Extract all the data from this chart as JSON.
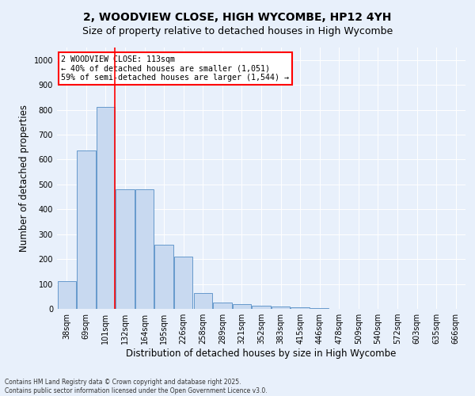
{
  "title": "2, WOODVIEW CLOSE, HIGH WYCOMBE, HP12 4YH",
  "subtitle": "Size of property relative to detached houses in High Wycombe",
  "xlabel": "Distribution of detached houses by size in High Wycombe",
  "ylabel": "Number of detached properties",
  "categories": [
    "38sqm",
    "69sqm",
    "101sqm",
    "132sqm",
    "164sqm",
    "195sqm",
    "226sqm",
    "258sqm",
    "289sqm",
    "321sqm",
    "352sqm",
    "383sqm",
    "415sqm",
    "446sqm",
    "478sqm",
    "509sqm",
    "540sqm",
    "572sqm",
    "603sqm",
    "635sqm",
    "666sqm"
  ],
  "values": [
    110,
    635,
    810,
    480,
    480,
    258,
    210,
    65,
    25,
    20,
    13,
    10,
    7,
    3,
    0,
    0,
    0,
    0,
    0,
    0,
    0
  ],
  "bar_color": "#c8d9f0",
  "bar_edge_color": "#6699cc",
  "red_line_index": 2,
  "property_label": "2 WOODVIEW CLOSE: 113sqm",
  "annotation_line1": "← 40% of detached houses are smaller (1,051)",
  "annotation_line2": "59% of semi-detached houses are larger (1,544) →",
  "ylim": [
    0,
    1050
  ],
  "yticks": [
    0,
    100,
    200,
    300,
    400,
    500,
    600,
    700,
    800,
    900,
    1000
  ],
  "background_color": "#e8f0fb",
  "grid_color": "#ffffff",
  "footer_line1": "Contains HM Land Registry data © Crown copyright and database right 2025.",
  "footer_line2": "Contains public sector information licensed under the Open Government Licence v3.0.",
  "title_fontsize": 10,
  "subtitle_fontsize": 9,
  "tick_fontsize": 7,
  "label_fontsize": 8.5,
  "ylabel_fontsize": 8.5
}
